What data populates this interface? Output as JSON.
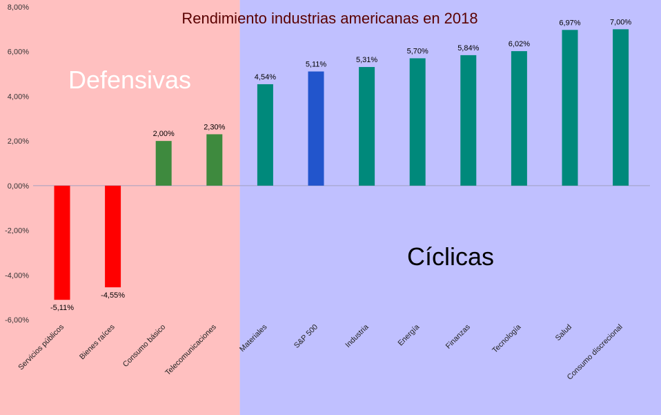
{
  "chart_data": {
    "type": "bar",
    "title": "Rendimiento industrias americanas en 2018",
    "xlabel": "",
    "ylabel": "",
    "ylim": [
      -6,
      8
    ],
    "yticks": [
      -6,
      -4,
      -2,
      0,
      2,
      4,
      6,
      8
    ],
    "ytick_labels": [
      "-6,00%",
      "-4,00%",
      "-2,00%",
      "0,00%",
      "2,00%",
      "4,00%",
      "6,00%",
      "8,00%"
    ],
    "grid": false,
    "legend": "none",
    "categories": [
      "Servicios públicos",
      "Bienes raíces",
      "Consumo básico",
      "Telecomunicaciones",
      "Materiales",
      "S&P 500",
      "Industria",
      "Energía",
      "Finanzas",
      "Tecnología",
      "Salud",
      "Consumo discrecional"
    ],
    "values": [
      -5.11,
      -4.55,
      2.0,
      2.3,
      4.54,
      5.11,
      5.31,
      5.7,
      5.84,
      6.02,
      6.97,
      7.0
    ],
    "value_labels": [
      "-5,11%",
      "-4,55%",
      "2,00%",
      "2,30%",
      "4,54%",
      "5,11%",
      "5,31%",
      "5,70%",
      "5,84%",
      "6,02%",
      "6,97%",
      "7,00%"
    ],
    "bar_colors": [
      "#ff0000",
      "#ff0000",
      "#3e8a3e",
      "#3e8a3e",
      "#00897b",
      "#2255cc",
      "#00897b",
      "#00897b",
      "#00897b",
      "#00897b",
      "#00897b",
      "#00897b"
    ],
    "regions": [
      {
        "label": "Defensivas",
        "from_index": 0,
        "to_index": 3,
        "color": "#ffc0c0",
        "label_color": "#ffffff"
      },
      {
        "label": "Cíclicas",
        "from_index": 4,
        "to_index": 11,
        "color": "#c0c0ff",
        "label_color": "#000000"
      }
    ]
  }
}
